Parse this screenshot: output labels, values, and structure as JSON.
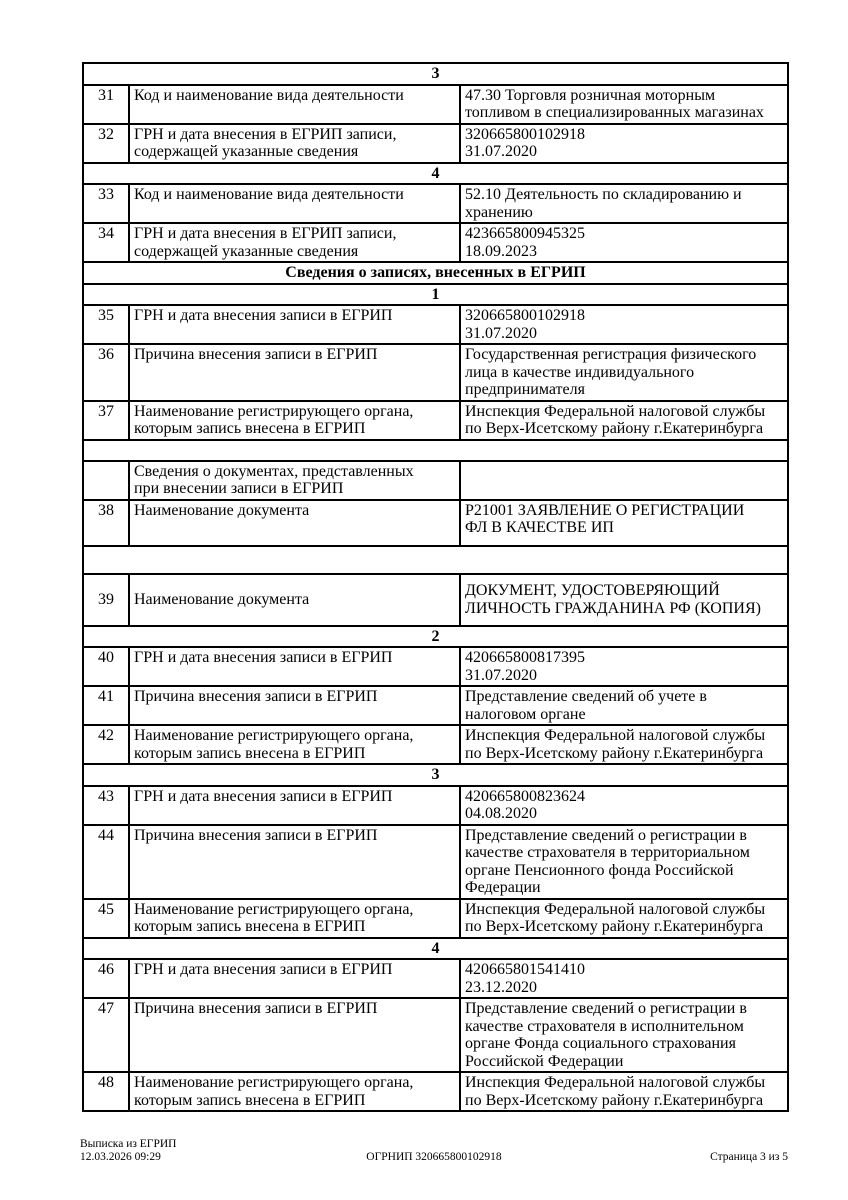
{
  "table": {
    "rows": [
      {
        "type": "section",
        "text": "3"
      },
      {
        "type": "data",
        "num": "31",
        "label": "Код и наименование вида деятельности",
        "value": "47.30 Торговля розничная моторным\nтопливом в специализированных магазинах"
      },
      {
        "type": "data",
        "num": "32",
        "label": "ГРН и дата внесения в ЕГРИП записи,\nсодержащей указанные сведения",
        "value": "320665800102918\n31.07.2020"
      },
      {
        "type": "section",
        "text": "4"
      },
      {
        "type": "data",
        "num": "33",
        "label": "Код и наименование вида деятельности",
        "value": "52.10 Деятельность по складированию и\nхранению"
      },
      {
        "type": "data",
        "num": "34",
        "label": "ГРН и дата внесения в ЕГРИП записи,\nсодержащей указанные сведения",
        "value": "423665800945325\n18.09.2023"
      },
      {
        "type": "section",
        "text": "Сведения о записях, внесенных в ЕГРИП"
      },
      {
        "type": "section",
        "text": "1"
      },
      {
        "type": "data",
        "num": "35",
        "label": "ГРН и дата внесения записи в ЕГРИП",
        "value": "320665800102918\n31.07.2020"
      },
      {
        "type": "data",
        "num": "36",
        "label": "Причина внесения записи в ЕГРИП",
        "value": "Государственная регистрация физического\nлица в качестве индивидуального\nпредпринимателя"
      },
      {
        "type": "data",
        "num": "37",
        "label": "Наименование регистрирующего органа,\nкоторым запись внесена в ЕГРИП",
        "value": "Инспекция Федеральной налоговой службы\nпо Верх-Исетскому району г.Екатеринбурга"
      },
      {
        "type": "empty"
      },
      {
        "type": "data",
        "num": "",
        "label": "Сведения о документах, представленных\nпри внесении записи в ЕГРИП",
        "value": ""
      },
      {
        "type": "data",
        "num": "38",
        "label": "Наименование документа",
        "value": "Р21001 ЗАЯВЛЕНИЕ О РЕГИСТРАЦИИ\nФЛ В КАЧЕСТВЕ ИП"
      },
      {
        "type": "empty"
      },
      {
        "type": "data",
        "num": "39",
        "label": "Наименование документа",
        "value": "ДОКУМЕНТ, УДОСТОВЕРЯЮЩИЙ\nЛИЧНОСТЬ ГРАЖДАНИНА РФ (КОПИЯ)"
      },
      {
        "type": "section",
        "text": "2"
      },
      {
        "type": "data",
        "num": "40",
        "label": "ГРН и дата внесения записи в ЕГРИП",
        "value": "420665800817395\n31.07.2020"
      },
      {
        "type": "data",
        "num": "41",
        "label": "Причина внесения записи в ЕГРИП",
        "value": "Представление сведений об учете в\nналоговом органе"
      },
      {
        "type": "data",
        "num": "42",
        "label": "Наименование регистрирующего органа,\nкоторым запись внесена в ЕГРИП",
        "value": "Инспекция Федеральной налоговой службы\nпо Верх-Исетскому району г.Екатеринбурга"
      },
      {
        "type": "section",
        "text": "3"
      },
      {
        "type": "data",
        "num": "43",
        "label": "ГРН и дата внесения записи в ЕГРИП",
        "value": "420665800823624\n04.08.2020"
      },
      {
        "type": "data",
        "num": "44",
        "label": "Причина внесения записи в ЕГРИП",
        "value": "Представление сведений о регистрации в\nкачестве страхователя в территориальном\nоргане Пенсионного фонда Российской\nФедерации"
      },
      {
        "type": "data",
        "num": "45",
        "label": "Наименование регистрирующего органа,\nкоторым запись внесена в ЕГРИП",
        "value": "Инспекция Федеральной налоговой службы\nпо Верх-Исетскому району г.Екатеринбурга"
      },
      {
        "type": "section",
        "text": "4"
      },
      {
        "type": "data",
        "num": "46",
        "label": "ГРН и дата внесения записи в ЕГРИП",
        "value": "420665801541410\n23.12.2020"
      },
      {
        "type": "data",
        "num": "47",
        "label": "Причина внесения записи в ЕГРИП",
        "value": "Представление сведений о регистрации в\nкачестве страхователя в исполнительном\nоргане Фонда социального страхования\nРоссийской Федерации"
      },
      {
        "type": "data",
        "num": "48",
        "label": "Наименование регистрирующего органа,\nкоторым запись внесена в ЕГРИП",
        "value": "Инспекция Федеральной налоговой службы\nпо Верх-Исетскому району г.Екатеринбурга"
      }
    ]
  },
  "footer": {
    "doc_title": "Выписка из ЕГРИП",
    "datetime": "12.03.2026 09:29",
    "ogrnip": "ОГРНИП 320665800102918",
    "page": "Страница 3 из 5"
  }
}
